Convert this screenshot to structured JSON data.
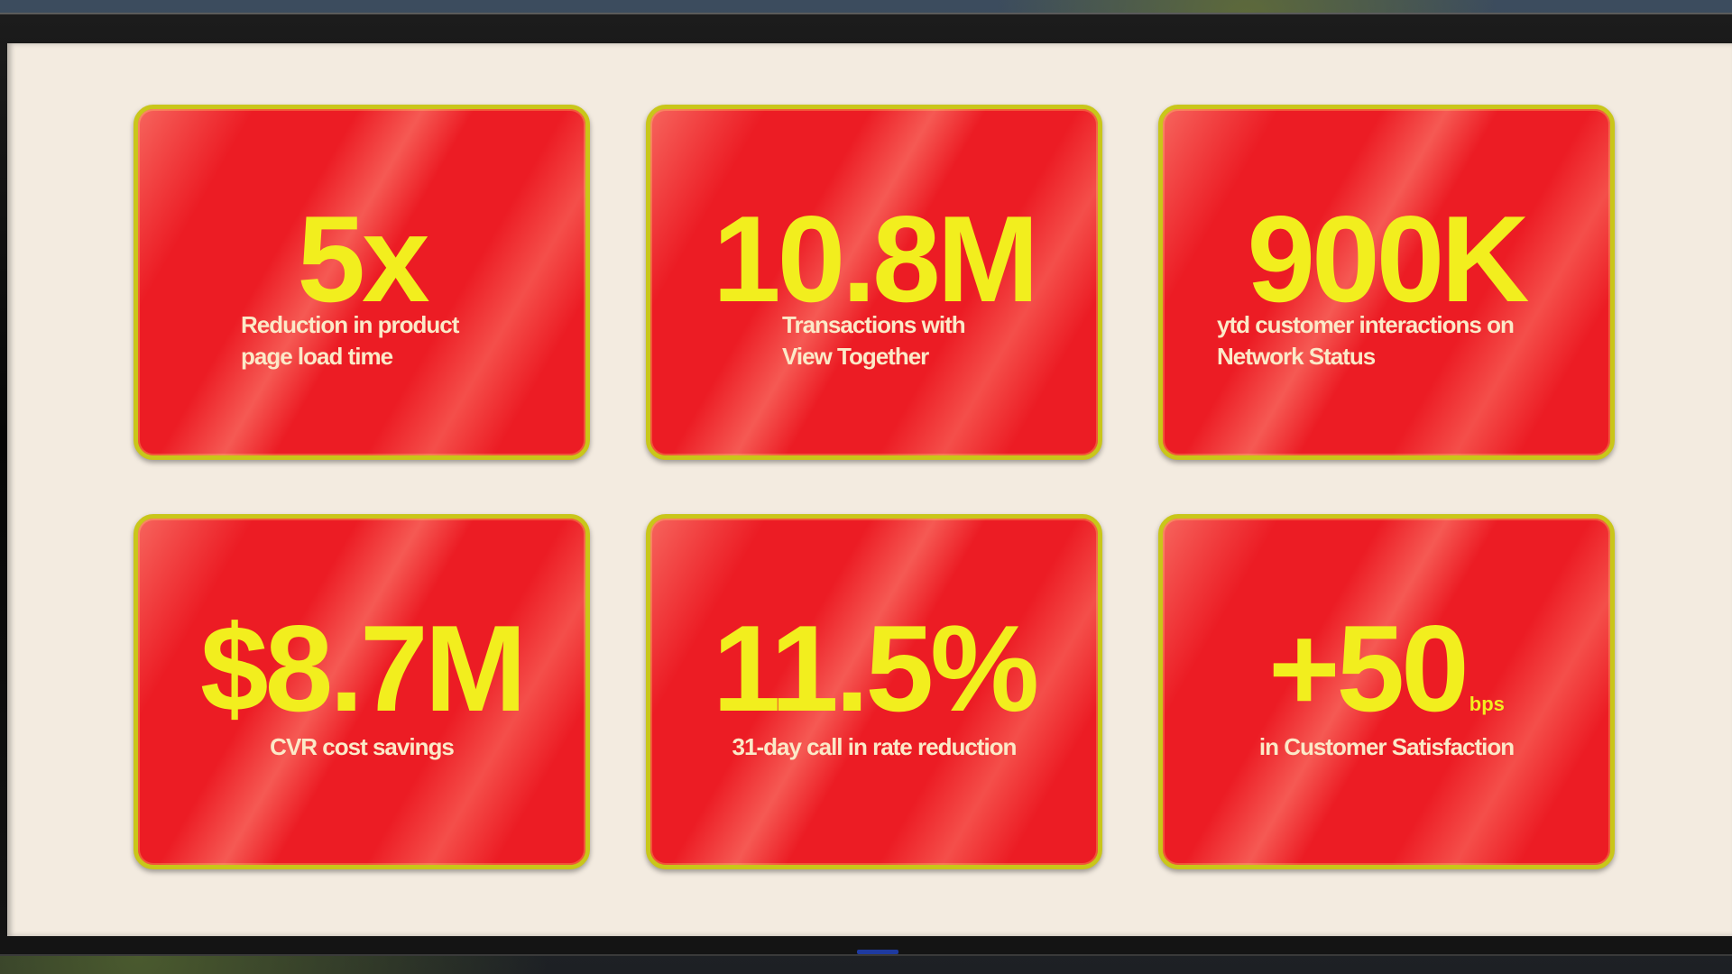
{
  "tiles": [
    {
      "value": "5x",
      "label_line1": "Reduction in product",
      "label_line2": "page load time"
    },
    {
      "value": "10.8M",
      "label_line1": "Transactions with",
      "label_line2": "View Together"
    },
    {
      "value": "900K",
      "label_line1": "ytd customer interactions on",
      "label_line2": "Network Status"
    },
    {
      "value": "$8.7M",
      "label_line1": "CVR cost savings"
    },
    {
      "value": "11.5%",
      "label_line1": "31-day call in rate reduction"
    },
    {
      "value": "+50",
      "unit": "bps",
      "label_line1": "in Customer Satisfaction"
    }
  ],
  "colors": {
    "tile_red": "#ec1c24",
    "value_yellow": "#f2ee1e",
    "tile_border": "#c9c61a",
    "screen_background": "#f3ebe0"
  }
}
